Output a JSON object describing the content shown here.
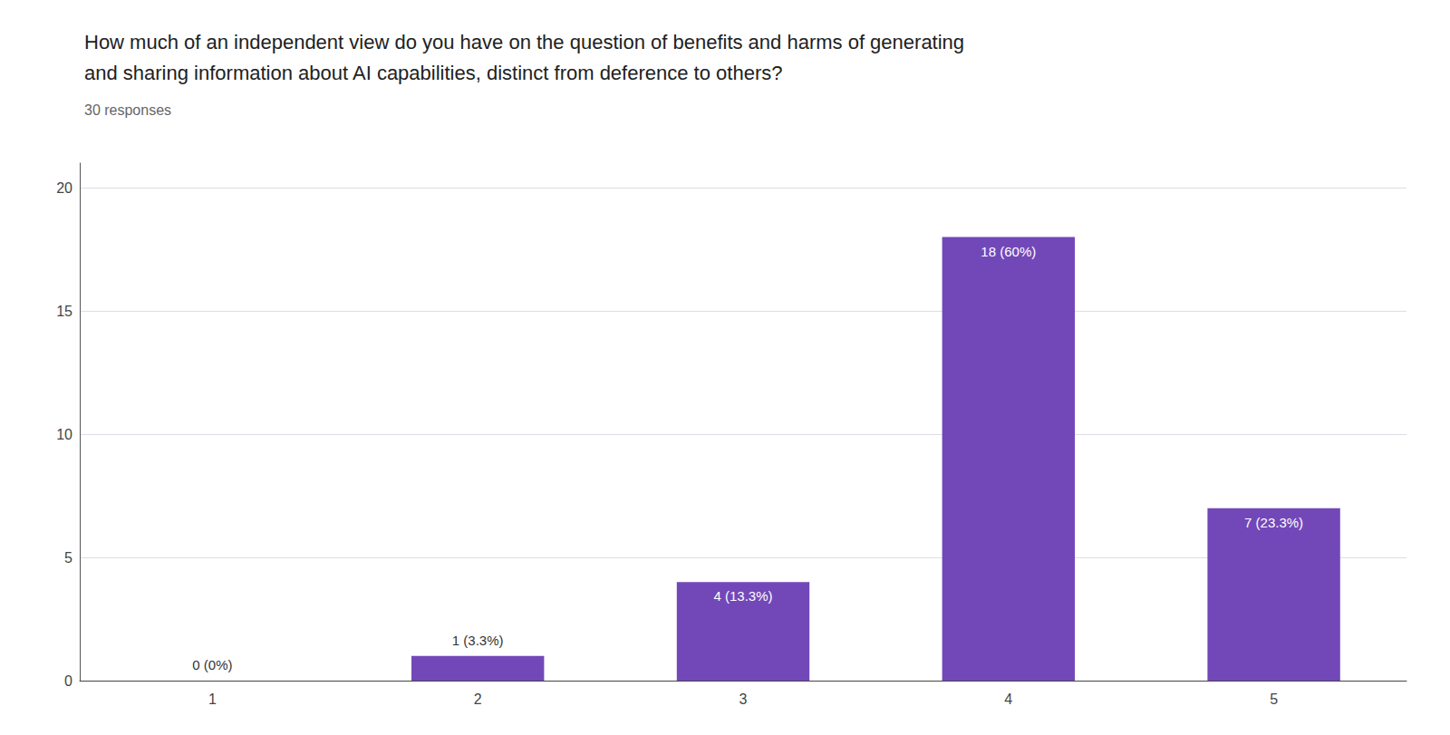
{
  "chart_data": {
    "type": "bar",
    "title": "How much of an independent view do you have on the question of benefits and harms of generating\nand sharing information about AI capabilities, distinct from deference to others?",
    "subtitle": "30 responses",
    "categories": [
      "1",
      "2",
      "3",
      "4",
      "5"
    ],
    "values": [
      0,
      1,
      4,
      18,
      7
    ],
    "value_labels": [
      "0 (0%)",
      "1 (3.3%)",
      "4 (13.3%)",
      "18 (60%)",
      "7 (23.3%)"
    ],
    "data_labels": true,
    "color": "#7248b9",
    "ylim": [
      0,
      21
    ],
    "yticks": [
      0,
      5,
      10,
      15,
      20
    ],
    "grid": true
  }
}
